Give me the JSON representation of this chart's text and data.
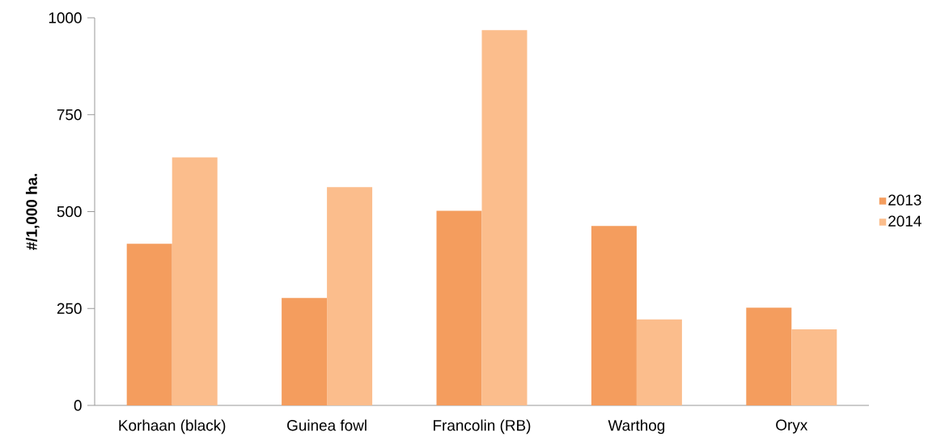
{
  "chart_data": {
    "type": "bar",
    "ylabel": "#/1,000 ha.",
    "categories": [
      "Korhaan (black)",
      "Guinea fowl",
      "Francolin (RB)",
      "Warthog",
      "Oryx"
    ],
    "series": [
      {
        "name": "2013",
        "color": "#f49d5e",
        "values": [
          417,
          277,
          502,
          463,
          252
        ]
      },
      {
        "name": "2014",
        "color": "#fbbd8c",
        "values": [
          640,
          563,
          968,
          222,
          196
        ]
      }
    ],
    "ylim": [
      0,
      1000
    ],
    "yticks": [
      0,
      250,
      500,
      750,
      1000
    ],
    "grid": false,
    "legend": "right"
  }
}
